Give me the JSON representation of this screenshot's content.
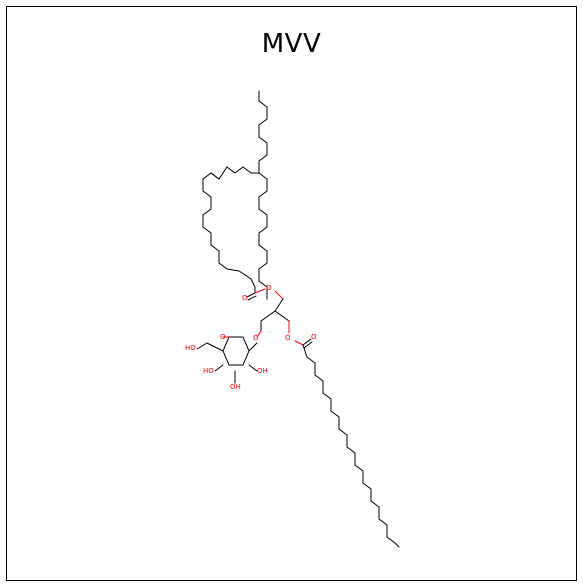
{
  "diagram": {
    "title": "MVV",
    "atom_labels": {
      "ester_o_upper": "O",
      "carbonyl_o_upper": "O",
      "glycosidic_o": "O",
      "ring_o": "O",
      "ester_o_lower": "O",
      "carbonyl_o_lower": "O",
      "ch2oh": "HO",
      "oh_c4": "HO",
      "oh_c3": "OH",
      "oh_c2": "OH"
    },
    "colors": {
      "bond": "#000000",
      "heteroatom": "#ff0000",
      "frame": "#000000",
      "background": "#ffffff"
    }
  }
}
